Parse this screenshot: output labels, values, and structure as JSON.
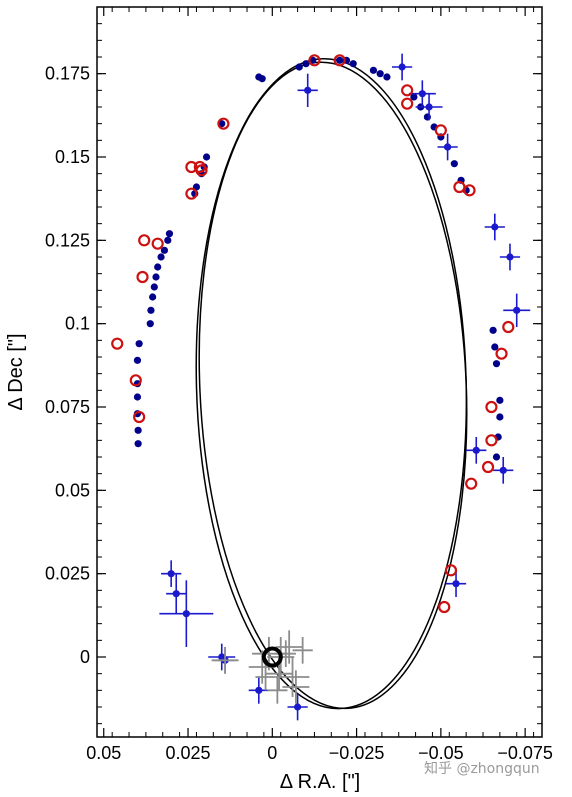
{
  "watermark": "知乎 @zhongqun",
  "chart_data": {
    "type": "scatter",
    "title": "",
    "xlabel": "Δ R.A. [\"]",
    "ylabel": "Δ Dec [\"]",
    "xlim": [
      0.052,
      -0.08
    ],
    "ylim": [
      -0.024,
      0.195
    ],
    "x_reversed": true,
    "xticks": [
      0.05,
      0.025,
      0,
      -0.025,
      -0.05,
      -0.075
    ],
    "xtick_labels": [
      "0.05",
      "0.025",
      "0",
      "−0.025",
      "−0.05",
      "−0.075"
    ],
    "yticks": [
      0,
      0.025,
      0.05,
      0.075,
      0.1,
      0.125,
      0.15,
      0.175
    ],
    "ytick_labels": [
      "0",
      "0.025",
      "0.05",
      "0.075",
      "0.1",
      "0.125",
      "0.15",
      "0.175"
    ],
    "colors": {
      "blue": "#1a1acc",
      "navy": "#00008b",
      "red": "#cc1111",
      "gray": "#8c8c8c",
      "black": "#000000"
    },
    "orbits": [
      {
        "center": [
          -0.0175,
          0.082
        ],
        "semi_x": 0.04,
        "semi_y": 0.0975,
        "tilt_deg": 1.5
      },
      {
        "center": [
          -0.018,
          0.0815
        ],
        "semi_x": 0.0395,
        "semi_y": 0.097,
        "tilt_deg": 2.5
      }
    ],
    "central_star": [
      0.0,
      0.0
    ],
    "series": [
      {
        "marker": "filled-dot",
        "color": "navy",
        "points": [
          [
            0.0195,
            0.15
          ],
          [
            0.0202,
            0.147
          ],
          [
            0.021,
            0.145
          ],
          [
            0.0225,
            0.141
          ],
          [
            0.023,
            0.139
          ],
          [
            0.0305,
            0.127
          ],
          [
            0.031,
            0.125
          ],
          [
            0.032,
            0.122
          ],
          [
            0.033,
            0.12
          ],
          [
            0.034,
            0.117
          ],
          [
            0.0345,
            0.114
          ],
          [
            0.035,
            0.111
          ],
          [
            0.0355,
            0.108
          ],
          [
            0.036,
            0.104
          ],
          [
            0.0362,
            0.1
          ],
          [
            0.0395,
            0.094
          ],
          [
            0.04,
            0.089
          ],
          [
            0.04,
            0.082
          ],
          [
            0.04,
            0.078
          ],
          [
            0.04,
            0.073
          ],
          [
            0.0398,
            0.068
          ],
          [
            0.0398,
            0.064
          ],
          [
            0.015,
            0.16
          ],
          [
            0.004,
            0.174
          ],
          [
            0.003,
            0.1735
          ],
          [
            -0.008,
            0.177
          ],
          [
            -0.01,
            0.178
          ],
          [
            -0.012,
            0.179
          ],
          [
            -0.02,
            0.179
          ],
          [
            -0.022,
            0.179
          ],
          [
            -0.024,
            0.178
          ],
          [
            -0.03,
            0.176
          ],
          [
            -0.032,
            0.175
          ],
          [
            -0.034,
            0.174
          ],
          [
            -0.042,
            0.168
          ],
          [
            -0.044,
            0.165
          ],
          [
            -0.046,
            0.162
          ],
          [
            -0.048,
            0.159
          ],
          [
            -0.05,
            0.156
          ],
          [
            -0.052,
            0.153
          ],
          [
            -0.054,
            0.148
          ],
          [
            -0.056,
            0.143
          ],
          [
            -0.0575,
            0.14
          ],
          [
            -0.0655,
            0.098
          ],
          [
            -0.066,
            0.093
          ],
          [
            -0.0665,
            0.088
          ],
          [
            -0.0675,
            0.077
          ],
          [
            -0.0675,
            0.072
          ],
          [
            -0.067,
            0.066
          ],
          [
            -0.0665,
            0.06
          ]
        ]
      },
      {
        "marker": "dot-errorbar",
        "color": "blue",
        "points": [
          [
            -0.0105,
            0.17,
            0.003,
            0.005
          ],
          [
            -0.0385,
            0.177,
            0.003,
            0.004
          ],
          [
            -0.0445,
            0.169,
            0.004,
            0.004
          ],
          [
            -0.0465,
            0.165,
            0.004,
            0.004
          ],
          [
            -0.052,
            0.153,
            0.003,
            0.004
          ],
          [
            -0.066,
            0.129,
            0.003,
            0.004
          ],
          [
            -0.0705,
            0.12,
            0.003,
            0.004
          ],
          [
            -0.0725,
            0.104,
            0.004,
            0.005
          ],
          [
            -0.0605,
            0.062,
            0.003,
            0.004
          ],
          [
            -0.0685,
            0.056,
            0.003,
            0.004
          ],
          [
            -0.0545,
            0.022,
            0.003,
            0.004
          ],
          [
            0.03,
            0.025,
            0.003,
            0.004
          ],
          [
            0.0285,
            0.019,
            0.003,
            0.006
          ],
          [
            0.0255,
            0.013,
            0.008,
            0.01
          ],
          [
            0.015,
            0.0,
            0.004,
            0.004
          ],
          [
            0.014,
            -0.001,
            0.003,
            0.004
          ],
          [
            0.004,
            -0.01,
            0.003,
            0.004
          ],
          [
            -0.0075,
            -0.015,
            0.003,
            0.004
          ]
        ]
      },
      {
        "marker": "open-circle",
        "color": "red",
        "points": [
          [
            -0.0125,
            0.179
          ],
          [
            -0.02,
            0.179
          ],
          [
            -0.04,
            0.17
          ],
          [
            -0.04,
            0.166
          ],
          [
            -0.05,
            0.158
          ],
          [
            -0.0555,
            0.141
          ],
          [
            -0.0585,
            0.14
          ],
          [
            0.024,
            0.147
          ],
          [
            0.0215,
            0.147
          ],
          [
            0.021,
            0.146
          ],
          [
            0.0145,
            0.16
          ],
          [
            0.024,
            0.139
          ],
          [
            0.038,
            0.125
          ],
          [
            0.034,
            0.124
          ],
          [
            0.0385,
            0.114
          ],
          [
            0.046,
            0.094
          ],
          [
            0.0405,
            0.083
          ],
          [
            0.0395,
            0.072
          ],
          [
            -0.07,
            0.099
          ],
          [
            -0.068,
            0.091
          ],
          [
            -0.065,
            0.075
          ],
          [
            -0.065,
            0.065
          ],
          [
            -0.064,
            0.057
          ],
          [
            -0.059,
            0.052
          ],
          [
            -0.053,
            0.026
          ],
          [
            -0.051,
            0.015
          ]
        ]
      },
      {
        "marker": "cross",
        "color": "gray",
        "points": [
          [
            0.001,
            0.001,
            0.005,
            0.005
          ],
          [
            -0.0025,
            0.0,
            0.004,
            0.006
          ],
          [
            -0.005,
            0.003,
            0.004,
            0.005
          ],
          [
            -0.006,
            -0.006,
            0.005,
            0.006
          ],
          [
            -0.002,
            -0.005,
            0.004,
            0.005
          ],
          [
            0.003,
            -0.003,
            0.004,
            0.005
          ],
          [
            -0.007,
            -0.009,
            0.004,
            0.005
          ],
          [
            -0.004,
            0.001,
            0.003,
            0.004
          ],
          [
            0.002,
            -0.006,
            0.003,
            0.004
          ],
          [
            -0.009,
            0.002,
            0.003,
            0.004
          ],
          [
            0.014,
            -0.001,
            0.004,
            0.004
          ],
          [
            -0.0015,
            -0.01,
            0.003,
            0.004
          ]
        ]
      }
    ]
  }
}
